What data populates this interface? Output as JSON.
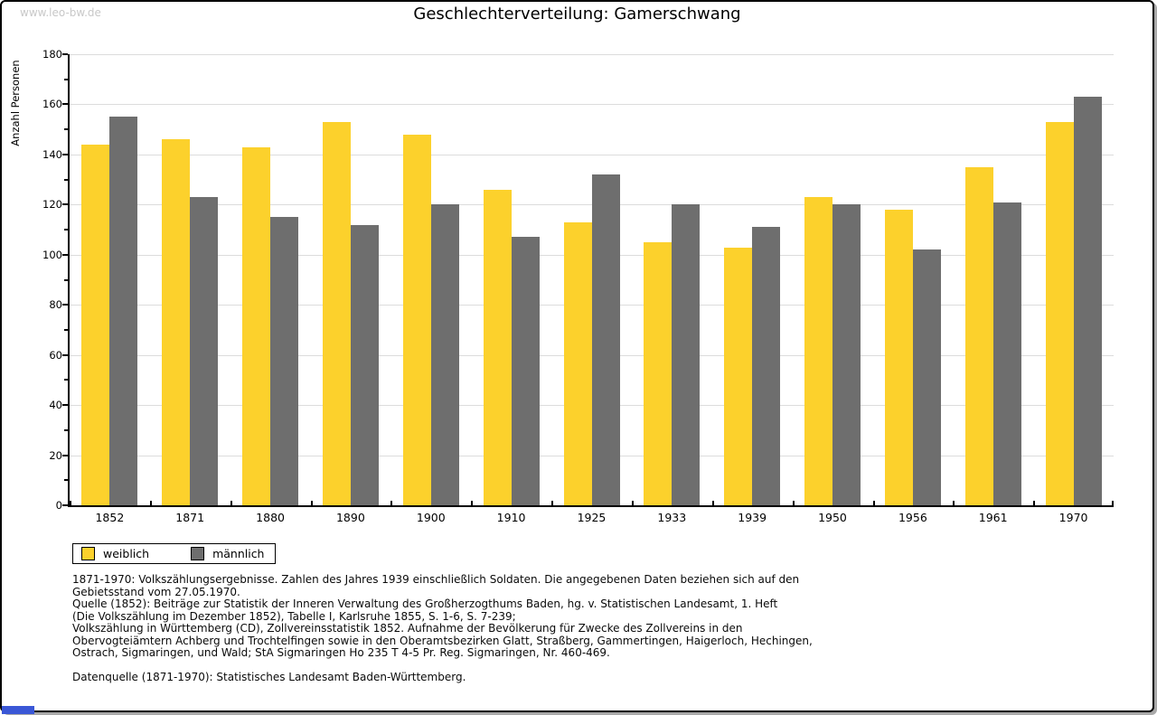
{
  "watermark": "www.leo-bw.de",
  "title": "Geschlechterverteilung: Gamerschwang",
  "chart_data": {
    "type": "bar",
    "title": "Geschlechterverteilung: Gamerschwang",
    "categories": [
      "1852",
      "1871",
      "1880",
      "1890",
      "1900",
      "1910",
      "1925",
      "1933",
      "1939",
      "1950",
      "1956",
      "1961",
      "1970"
    ],
    "series": [
      {
        "name": "weiblich",
        "color": "#fcd12c",
        "values": [
          144,
          146,
          143,
          153,
          148,
          126,
          113,
          105,
          103,
          123,
          118,
          135,
          153
        ]
      },
      {
        "name": "männlich",
        "color": "#6e6e6e",
        "values": [
          155,
          123,
          115,
          112,
          120,
          107,
          132,
          120,
          111,
          120,
          102,
          121,
          163
        ]
      }
    ],
    "xlabel": "",
    "ylabel": "Anzahl Personen",
    "ylim": [
      0,
      180
    ],
    "ytick_step": 20,
    "yminor_step": 10,
    "grid": true,
    "legend_position": "bottom-left"
  },
  "footnotes": [
    "1871-1970: Volkszählungsergebnisse. Zahlen des Jahres 1939 einschließlich Soldaten. Die angegebenen Daten beziehen sich auf den",
    "Gebietsstand vom 27.05.1970.",
    "Quelle (1852): Beiträge zur Statistik der Inneren Verwaltung des Großherzogthums Baden, hg. v. Statistischen Landesamt, 1. Heft",
    "(Die Volkszählung im Dezember 1852), Tabelle I, Karlsruhe 1855, S. 1-6, S. 7-239;",
    "Volkszählung in Württemberg (CD), Zollvereinsstatistik 1852. Aufnahme der Bevölkerung für Zwecke des Zollvereins in den",
    "Obervogteiämtern Achberg und Trochtelfingen sowie in den Oberamtsbezirken Glatt, Straßberg, Gammertingen, Haigerloch, Hechingen,",
    "Ostrach, Sigmaringen, und Wald; StA Sigmaringen Ho 235 T 4-5 Pr. Reg. Sigmaringen, Nr. 460-469.",
    "",
    "Datenquelle (1871-1970): Statistisches Landesamt Baden-Württemberg."
  ],
  "colors": {
    "weiblich": "#fcd12c",
    "männlich": "#6e6e6e",
    "grid": "#dcdcdc",
    "axis": "#000000",
    "watermark": "#c8c8c8",
    "frame_border": "#000000",
    "frame_shadow": "#a9a9a9"
  }
}
